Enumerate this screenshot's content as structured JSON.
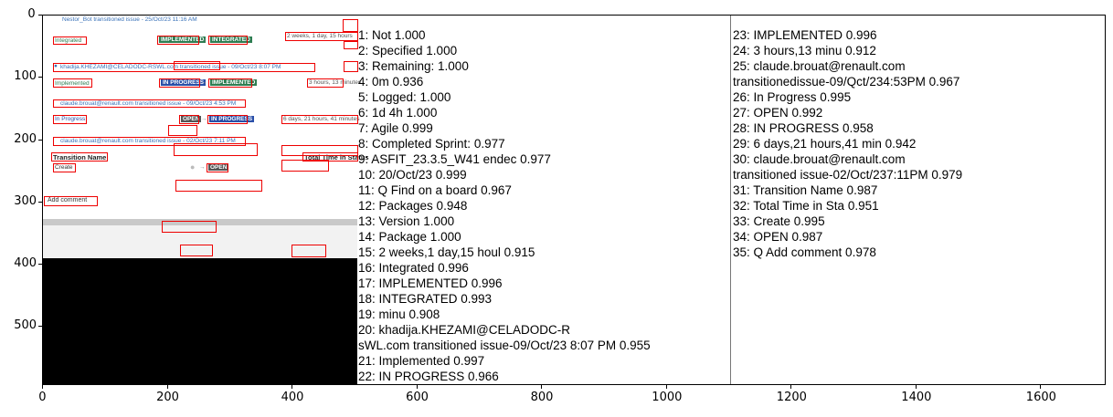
{
  "axes": {
    "x_ticks": [
      "0",
      "200",
      "400",
      "600",
      "800",
      "1000",
      "1200",
      "1400",
      "1600"
    ],
    "y_ticks": [
      "0",
      "100",
      "200",
      "300",
      "400",
      "500"
    ]
  },
  "screenshot": {
    "activity1": "Nestor_Bot transitioned issue - 25/Oct/23 11:16 AM",
    "from1": "Integrated",
    "lozenge1a": "IMPLEMENTED",
    "lozenge1b": "INTEGRATED",
    "dur1": "2 weeks, 1 day, 15 hours",
    "activity2": "khadija.KHEZAMI@CELADODC-RSWL.com transitioned issue - 09/Oct/23 8:07 PM",
    "from2": "Implemented",
    "lozenge2a": "IN PROGRESS",
    "lozenge2b": "IMPLEMENTED",
    "dur2": "3 hours, 13 minutes",
    "activity3": "claude.brouat@renault.com transitioned issue - 09/Oct/23 4:53 PM",
    "from3": "In Progress",
    "lozenge3a": "OPEN",
    "lozenge3b": "IN PROGRESS",
    "dur3": "6 days, 21 hours, 41 minutes",
    "activity4": "claude.brouat@renault.com transitioned issue - 02/Oct/23 7:11 PM",
    "col_transition": "Transition Name",
    "col_total": "Total Time in Status",
    "create_label": "Create",
    "lozenge4": "OPEN",
    "add_comment": "Add comment"
  },
  "ocr_col1": [
    "1: Not   1.000",
    "2: Specified   1.000",
    "3: Remaining:   1.000",
    "4: 0m   0.936",
    "5: Logged:   1.000",
    "6: 1d 4h   1.000",
    "7: Agile   0.999",
    "8: Completed Sprint:   0.977",
    "9: ASFIT_23.3.5_W41 endec   0.977",
    "10: 20/Oct/23   0.999",
    "11: Q Find on a board   0.967",
    "12:  Packages   0.948",
    "13: Version   1.000",
    "14: Package   1.000",
    "15: 2 weeks,1 day,15 houl   0.915",
    "16: Integrated   0.996",
    "17: IMPLEMENTED   0.996",
    "18: INTEGRATED   0.993",
    "19: minu   0.908",
    "20: khadija.KHEZAMI@CELADODC-R",
    "  sWL.com transitioned issue-09/Oct/23 8:07 PM   0.955",
    "21: Implemented   0.997",
    "22: IN PROGRESS   0.966"
  ],
  "ocr_col2": [
    "23: IMPLEMENTED   0.996",
    "24: 3 hours,13 minu   0.912",
    "25:  claude.brouat@renault.com",
    "  transitionedissue-09/Qct/234:53PM   0.967",
    "26: In Progress   0.995",
    "27: OPEN   0.992",
    "28: IN PROGRESS   0.958",
    "29: 6 days,21 hours,41 min   0.942",
    "30: claude.brouat@renault.com",
    "  transitioned issue-02/Oct/237:11PM   0.979",
    "31: Transition Name   0.987",
    "32: Total Time in Sta   0.951",
    "33: Create   0.995",
    "34: OPEN   0.987",
    "35: Q Add comment   0.978"
  ],
  "colors": {
    "box": "#e00000",
    "link": "#3b73b9",
    "lozenge_green": "#2e7d52",
    "lozenge_blue": "#2a4fa8"
  }
}
